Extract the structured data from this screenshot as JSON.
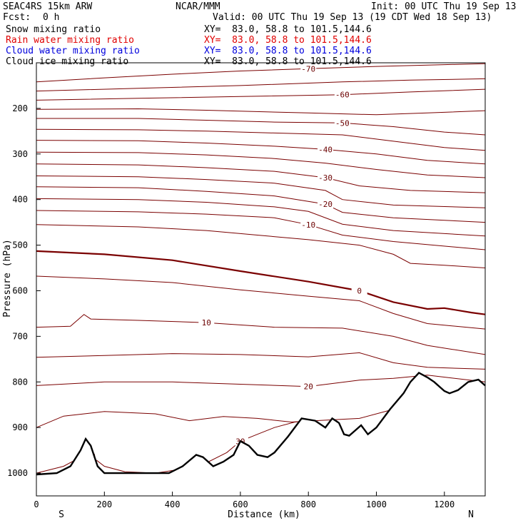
{
  "header": {
    "model": "SEAC4RS 15km ARW",
    "center": "NCAR/MMM",
    "init": "Init: 00 UTC Thu 19 Sep 13",
    "fcst_label": "Fcst:",
    "fcst_value": "0 h",
    "valid": "Valid: 00 UTC Thu 19 Sep 13 (19 CDT Wed 18 Sep 13)"
  },
  "fields": [
    {
      "name": "Snow mixing ratio",
      "xy": "XY=  83.0, 58.8 to 101.5,144.6",
      "color": "#000000"
    },
    {
      "name": "Rain water mixing ratio",
      "xy": "XY=  83.0, 58.8 to 101.5,144.6",
      "color": "#e00000"
    },
    {
      "name": "Cloud water mixing ratio",
      "xy": "XY=  83.0, 58.8 to 101.5,144.6",
      "color": "#0000dd"
    },
    {
      "name": "Cloud ice mixing ratio",
      "xy": "XY=  83.0, 58.8 to 101.5,144.6",
      "color": "#000000"
    }
  ],
  "chart_data": {
    "type": "line",
    "xlabel": "Distance (km)",
    "ylabel": "Pressure (hPa)",
    "xlim": [
      0,
      1320
    ],
    "ylim": [
      1050,
      100
    ],
    "x_ticks": [
      0,
      200,
      400,
      600,
      800,
      1000,
      1200
    ],
    "y_ticks": [
      200,
      300,
      400,
      500,
      600,
      700,
      800,
      900,
      1000
    ],
    "end_labels": {
      "left": "S",
      "right": "N"
    },
    "contour_color": "#7a0000",
    "terrain_color": "#000000",
    "temperature_contours": [
      {
        "level": -70,
        "points": [
          [
            0,
            142
          ],
          [
            200,
            133
          ],
          [
            400,
            125
          ],
          [
            600,
            118
          ],
          [
            800,
            113
          ],
          [
            1000,
            108
          ],
          [
            1200,
            104
          ],
          [
            1320,
            102
          ]
        ]
      },
      {
        "level": -65,
        "points": [
          [
            0,
            162
          ],
          [
            300,
            156
          ],
          [
            600,
            150
          ],
          [
            900,
            142
          ],
          [
            1100,
            138
          ],
          [
            1320,
            135
          ]
        ]
      },
      {
        "level": -60,
        "points": [
          [
            0,
            182
          ],
          [
            300,
            178
          ],
          [
            600,
            174
          ],
          [
            900,
            170
          ],
          [
            1100,
            164
          ],
          [
            1320,
            158
          ]
        ]
      },
      {
        "level": -55,
        "points": [
          [
            0,
            202
          ],
          [
            300,
            201
          ],
          [
            500,
            204
          ],
          [
            800,
            210
          ],
          [
            1000,
            214
          ],
          [
            1150,
            210
          ],
          [
            1320,
            205
          ]
        ]
      },
      {
        "level": -50,
        "points": [
          [
            0,
            222
          ],
          [
            300,
            222
          ],
          [
            500,
            226
          ],
          [
            700,
            230
          ],
          [
            900,
            232
          ],
          [
            1050,
            240
          ],
          [
            1200,
            252
          ],
          [
            1320,
            258
          ]
        ]
      },
      {
        "level": -45,
        "points": [
          [
            0,
            246
          ],
          [
            300,
            247
          ],
          [
            500,
            250
          ],
          [
            700,
            254
          ],
          [
            900,
            258
          ],
          [
            1050,
            272
          ],
          [
            1200,
            286
          ],
          [
            1320,
            292
          ]
        ]
      },
      {
        "level": -40,
        "points": [
          [
            0,
            270
          ],
          [
            300,
            271
          ],
          [
            500,
            276
          ],
          [
            700,
            283
          ],
          [
            850,
            290
          ],
          [
            1000,
            300
          ],
          [
            1150,
            314
          ],
          [
            1320,
            322
          ]
        ]
      },
      {
        "level": -35,
        "points": [
          [
            0,
            296
          ],
          [
            300,
            297
          ],
          [
            500,
            302
          ],
          [
            700,
            310
          ],
          [
            850,
            320
          ],
          [
            1000,
            334
          ],
          [
            1150,
            346
          ],
          [
            1320,
            352
          ]
        ]
      },
      {
        "level": -30,
        "points": [
          [
            0,
            322
          ],
          [
            300,
            324
          ],
          [
            500,
            330
          ],
          [
            700,
            338
          ],
          [
            850,
            352
          ],
          [
            950,
            370
          ],
          [
            1100,
            380
          ],
          [
            1320,
            385
          ]
        ]
      },
      {
        "level": -25,
        "points": [
          [
            0,
            348
          ],
          [
            300,
            350
          ],
          [
            500,
            356
          ],
          [
            700,
            364
          ],
          [
            850,
            380
          ],
          [
            900,
            400
          ],
          [
            1050,
            412
          ],
          [
            1320,
            418
          ]
        ]
      },
      {
        "level": -20,
        "points": [
          [
            0,
            372
          ],
          [
            300,
            374
          ],
          [
            500,
            382
          ],
          [
            700,
            392
          ],
          [
            850,
            410
          ],
          [
            900,
            428
          ],
          [
            1050,
            440
          ],
          [
            1320,
            450
          ]
        ]
      },
      {
        "level": -15,
        "points": [
          [
            0,
            398
          ],
          [
            300,
            400
          ],
          [
            500,
            406
          ],
          [
            700,
            416
          ],
          [
            800,
            426
          ],
          [
            900,
            454
          ],
          [
            1050,
            468
          ],
          [
            1320,
            480
          ]
        ]
      },
      {
        "level": -10,
        "points": [
          [
            0,
            424
          ],
          [
            300,
            427
          ],
          [
            500,
            432
          ],
          [
            700,
            440
          ],
          [
            800,
            455
          ],
          [
            900,
            478
          ],
          [
            1050,
            492
          ],
          [
            1320,
            510
          ]
        ]
      },
      {
        "level": -5,
        "points": [
          [
            0,
            455
          ],
          [
            300,
            460
          ],
          [
            500,
            468
          ],
          [
            650,
            478
          ],
          [
            800,
            488
          ],
          [
            950,
            500
          ],
          [
            1050,
            520
          ],
          [
            1100,
            540
          ],
          [
            1200,
            544
          ],
          [
            1320,
            550
          ]
        ]
      },
      {
        "level": 0,
        "bold": true,
        "points": [
          [
            0,
            513
          ],
          [
            200,
            520
          ],
          [
            400,
            533
          ],
          [
            600,
            557
          ],
          [
            800,
            580
          ],
          [
            950,
            600
          ],
          [
            1050,
            625
          ],
          [
            1150,
            640
          ],
          [
            1200,
            638
          ],
          [
            1280,
            648
          ],
          [
            1320,
            652
          ]
        ]
      },
      {
        "level": 5,
        "points": [
          [
            0,
            568
          ],
          [
            200,
            574
          ],
          [
            400,
            582
          ],
          [
            600,
            598
          ],
          [
            800,
            612
          ],
          [
            950,
            622
          ],
          [
            1050,
            650
          ],
          [
            1150,
            672
          ],
          [
            1320,
            684
          ]
        ]
      },
      {
        "level": 10,
        "points": [
          [
            0,
            680
          ],
          [
            100,
            678
          ],
          [
            140,
            652
          ],
          [
            160,
            662
          ],
          [
            300,
            665
          ],
          [
            500,
            670
          ],
          [
            700,
            680
          ],
          [
            900,
            682
          ],
          [
            1050,
            700
          ],
          [
            1150,
            720
          ],
          [
            1320,
            740
          ]
        ]
      },
      {
        "level": 15,
        "points": [
          [
            0,
            746
          ],
          [
            200,
            742
          ],
          [
            400,
            738
          ],
          [
            600,
            740
          ],
          [
            800,
            745
          ],
          [
            950,
            736
          ],
          [
            1050,
            758
          ],
          [
            1150,
            768
          ],
          [
            1320,
            772
          ]
        ]
      },
      {
        "level": 20,
        "points": [
          [
            0,
            808
          ],
          [
            200,
            800
          ],
          [
            400,
            800
          ],
          [
            600,
            805
          ],
          [
            800,
            810
          ],
          [
            950,
            796
          ],
          [
            1050,
            792
          ],
          [
            1150,
            785
          ],
          [
            1320,
            800
          ]
        ]
      },
      {
        "level": 25,
        "points": [
          [
            0,
            900
          ],
          [
            80,
            875
          ],
          [
            200,
            865
          ],
          [
            350,
            870
          ],
          [
            450,
            885
          ],
          [
            550,
            876
          ],
          [
            650,
            880
          ],
          [
            750,
            888
          ],
          [
            850,
            884
          ],
          [
            950,
            880
          ],
          [
            1050,
            860
          ]
        ]
      },
      {
        "level": 30,
        "points": [
          [
            0,
            1000
          ],
          [
            80,
            985
          ],
          [
            130,
            965
          ],
          [
            160,
            962
          ],
          [
            200,
            985
          ],
          [
            260,
            997
          ],
          [
            350,
            1000
          ]
        ]
      },
      {
        "level": 30,
        "points": [
          [
            230,
            1000
          ],
          [
            350,
            1000
          ],
          [
            480,
            985
          ],
          [
            560,
            955
          ],
          [
            600,
            930
          ],
          [
            650,
            915
          ],
          [
            700,
            900
          ],
          [
            760,
            888
          ],
          [
            800,
            885
          ]
        ]
      }
    ],
    "terrain": [
      [
        0,
        1003
      ],
      [
        60,
        1000
      ],
      [
        100,
        985
      ],
      [
        130,
        950
      ],
      [
        145,
        925
      ],
      [
        160,
        940
      ],
      [
        180,
        985
      ],
      [
        200,
        1000
      ],
      [
        300,
        1000
      ],
      [
        390,
        1000
      ],
      [
        430,
        985
      ],
      [
        470,
        960
      ],
      [
        490,
        965
      ],
      [
        520,
        985
      ],
      [
        550,
        975
      ],
      [
        580,
        960
      ],
      [
        600,
        930
      ],
      [
        625,
        940
      ],
      [
        650,
        960
      ],
      [
        680,
        965
      ],
      [
        700,
        955
      ],
      [
        740,
        920
      ],
      [
        780,
        880
      ],
      [
        820,
        885
      ],
      [
        850,
        900
      ],
      [
        870,
        880
      ],
      [
        890,
        890
      ],
      [
        905,
        915
      ],
      [
        920,
        918
      ],
      [
        940,
        905
      ],
      [
        955,
        895
      ],
      [
        975,
        915
      ],
      [
        1000,
        900
      ],
      [
        1040,
        860
      ],
      [
        1080,
        825
      ],
      [
        1100,
        800
      ],
      [
        1125,
        780
      ],
      [
        1150,
        790
      ],
      [
        1170,
        800
      ],
      [
        1200,
        820
      ],
      [
        1215,
        825
      ],
      [
        1240,
        818
      ],
      [
        1270,
        800
      ],
      [
        1300,
        795
      ],
      [
        1320,
        808
      ]
    ]
  }
}
